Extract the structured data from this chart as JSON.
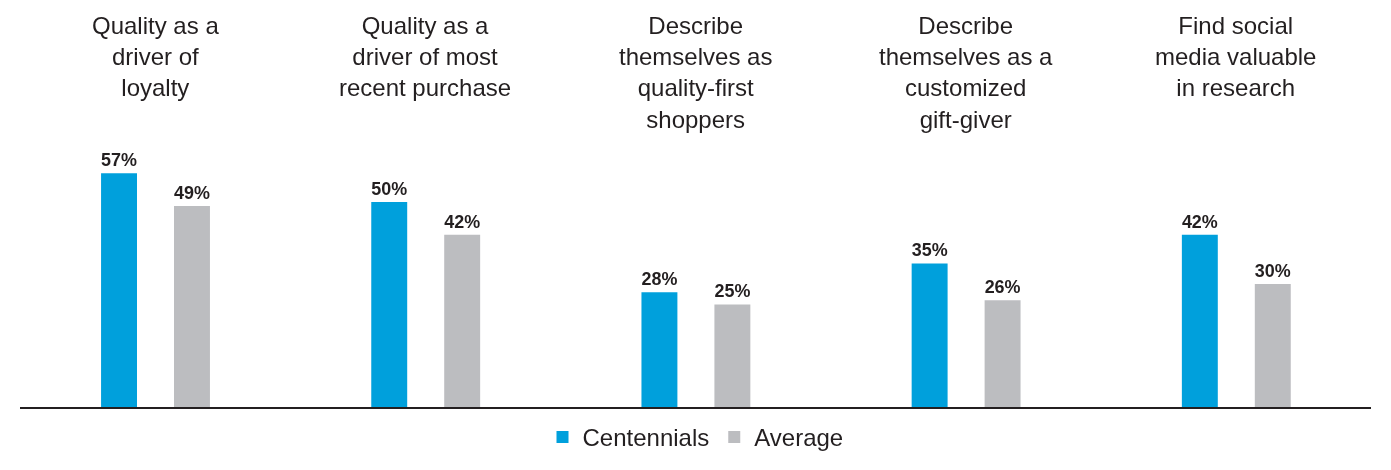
{
  "chart_data": {
    "type": "bar",
    "categories": [
      "Quality as a driver of loyalty",
      "Quality as a driver of most recent purchase",
      "Describe themselves as quality-first shoppers",
      "Describe themselves as a customized gift-giver",
      "Find social media valuable in research"
    ],
    "series": [
      {
        "name": "Centennials",
        "color": "#00a0dc",
        "values": [
          57,
          50,
          28,
          35,
          42
        ],
        "value_labels": [
          "57%",
          "50%",
          "28%",
          "35%",
          "42%"
        ]
      },
      {
        "name": "Average",
        "color": "#bcbdc0",
        "values": [
          49,
          42,
          25,
          26,
          30
        ],
        "value_labels": [
          "49%",
          "42%",
          "25%",
          "26%",
          "30%"
        ]
      }
    ],
    "grid": false,
    "legend": "bottom"
  }
}
